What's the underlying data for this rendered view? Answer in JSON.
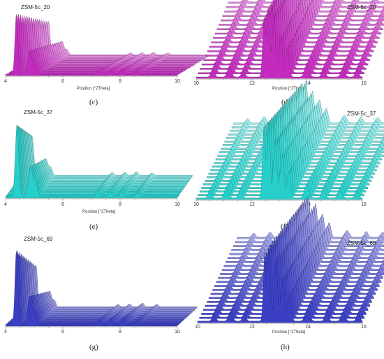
{
  "chart_data": [
    {
      "id": "c",
      "type": "area",
      "panel_letter": "(c)",
      "sample_label": "ZSM-5c_20",
      "xlabel": "Position [°2Theta]",
      "xlim": [
        4,
        10
      ],
      "xticks": [
        4,
        6,
        8,
        10
      ],
      "layers": 18,
      "color": "#c32bbf",
      "peaks": [
        [
          4.38,
          1.0,
          0.05
        ],
        [
          4.85,
          0.4,
          0.07
        ],
        [
          5.03,
          0.14,
          0.05
        ],
        [
          7.25,
          0.05,
          0.05
        ],
        [
          7.65,
          0.06,
          0.05
        ],
        [
          8.05,
          0.07,
          0.05
        ],
        [
          8.55,
          0.05,
          0.05
        ]
      ]
    },
    {
      "id": "d",
      "type": "area",
      "panel_letter": "(d)",
      "sample_label": "ZSM-5c_20",
      "xlabel": "Position [°2Theta]",
      "xlim": [
        10,
        16
      ],
      "xticks": [
        10,
        12,
        14,
        16
      ],
      "layers": 22,
      "color": "#c32bbf",
      "peaks": [
        [
          10.6,
          0.12,
          0.06
        ],
        [
          11.2,
          0.15,
          0.07
        ],
        [
          11.7,
          0.1,
          0.06
        ],
        [
          12.45,
          0.85,
          0.05
        ],
        [
          12.6,
          1.0,
          0.05
        ],
        [
          12.8,
          0.9,
          0.06
        ],
        [
          13.05,
          0.55,
          0.07
        ],
        [
          13.3,
          0.4,
          0.06
        ],
        [
          14.0,
          0.18,
          0.08
        ],
        [
          14.6,
          0.14,
          0.06
        ],
        [
          15.3,
          0.12,
          0.07
        ],
        [
          15.8,
          0.1,
          0.06
        ]
      ]
    },
    {
      "id": "e",
      "type": "area",
      "panel_letter": "(e)",
      "sample_label": "ZSM-5c_37",
      "xlabel": "Position [°2Theta]",
      "xlim": [
        4,
        10
      ],
      "xticks": [
        4,
        6,
        8,
        10
      ],
      "layers": 18,
      "color": "#27cfcb",
      "peaks": [
        [
          4.4,
          1.0,
          0.06
        ],
        [
          4.88,
          0.42,
          0.08
        ],
        [
          5.06,
          0.18,
          0.05
        ],
        [
          7.2,
          0.07,
          0.05
        ],
        [
          7.65,
          0.08,
          0.05
        ],
        [
          8.05,
          0.09,
          0.05
        ],
        [
          8.6,
          0.06,
          0.05
        ]
      ]
    },
    {
      "id": "f",
      "type": "area",
      "panel_letter": "(f)",
      "sample_label": "ZSM-5c_37",
      "xlabel": "Position [°2Theta]",
      "xlim": [
        10,
        16
      ],
      "xticks": [
        10,
        12,
        14,
        16
      ],
      "layers": 22,
      "color": "#27cfcb",
      "peaks": [
        [
          10.5,
          0.1,
          0.06
        ],
        [
          11.1,
          0.15,
          0.07
        ],
        [
          11.6,
          0.12,
          0.06
        ],
        [
          12.45,
          0.95,
          0.05
        ],
        [
          12.62,
          1.0,
          0.05
        ],
        [
          12.85,
          0.75,
          0.06
        ],
        [
          13.1,
          0.55,
          0.07
        ],
        [
          13.35,
          0.35,
          0.06
        ],
        [
          14.0,
          0.18,
          0.08
        ],
        [
          14.6,
          0.15,
          0.06
        ],
        [
          15.2,
          0.13,
          0.07
        ],
        [
          15.8,
          0.1,
          0.06
        ]
      ]
    },
    {
      "id": "g",
      "type": "area",
      "panel_letter": "(g)",
      "sample_label": "ZSM-5c_69",
      "xlabel": "Position [°2Theta]",
      "xlim": [
        4,
        10
      ],
      "xticks": [
        4,
        6,
        8,
        10
      ],
      "layers": 18,
      "color": "#3b3fc4",
      "peaks": [
        [
          4.38,
          1.0,
          0.05
        ],
        [
          4.85,
          0.38,
          0.07
        ],
        [
          5.02,
          0.15,
          0.05
        ],
        [
          7.25,
          0.06,
          0.05
        ],
        [
          7.65,
          0.07,
          0.05
        ],
        [
          8.1,
          0.09,
          0.05
        ],
        [
          8.6,
          0.06,
          0.05
        ]
      ]
    },
    {
      "id": "h",
      "type": "area",
      "panel_letter": "(h)",
      "sample_label": "ZSM-5c_69",
      "xlabel": "Position [°2Theta]",
      "xlim": [
        10,
        16
      ],
      "xticks": [
        10,
        12,
        14,
        16
      ],
      "layers": 22,
      "color": "#3b3fc4",
      "peaks": [
        [
          10.6,
          0.1,
          0.06
        ],
        [
          11.2,
          0.12,
          0.07
        ],
        [
          11.7,
          0.1,
          0.06
        ],
        [
          12.45,
          0.9,
          0.05
        ],
        [
          12.6,
          1.0,
          0.05
        ],
        [
          12.85,
          0.8,
          0.06
        ],
        [
          13.1,
          0.55,
          0.07
        ],
        [
          13.35,
          0.35,
          0.06
        ],
        [
          14.0,
          0.16,
          0.08
        ],
        [
          14.7,
          0.14,
          0.06
        ],
        [
          15.3,
          0.12,
          0.07
        ],
        [
          15.85,
          0.1,
          0.06
        ]
      ]
    }
  ]
}
